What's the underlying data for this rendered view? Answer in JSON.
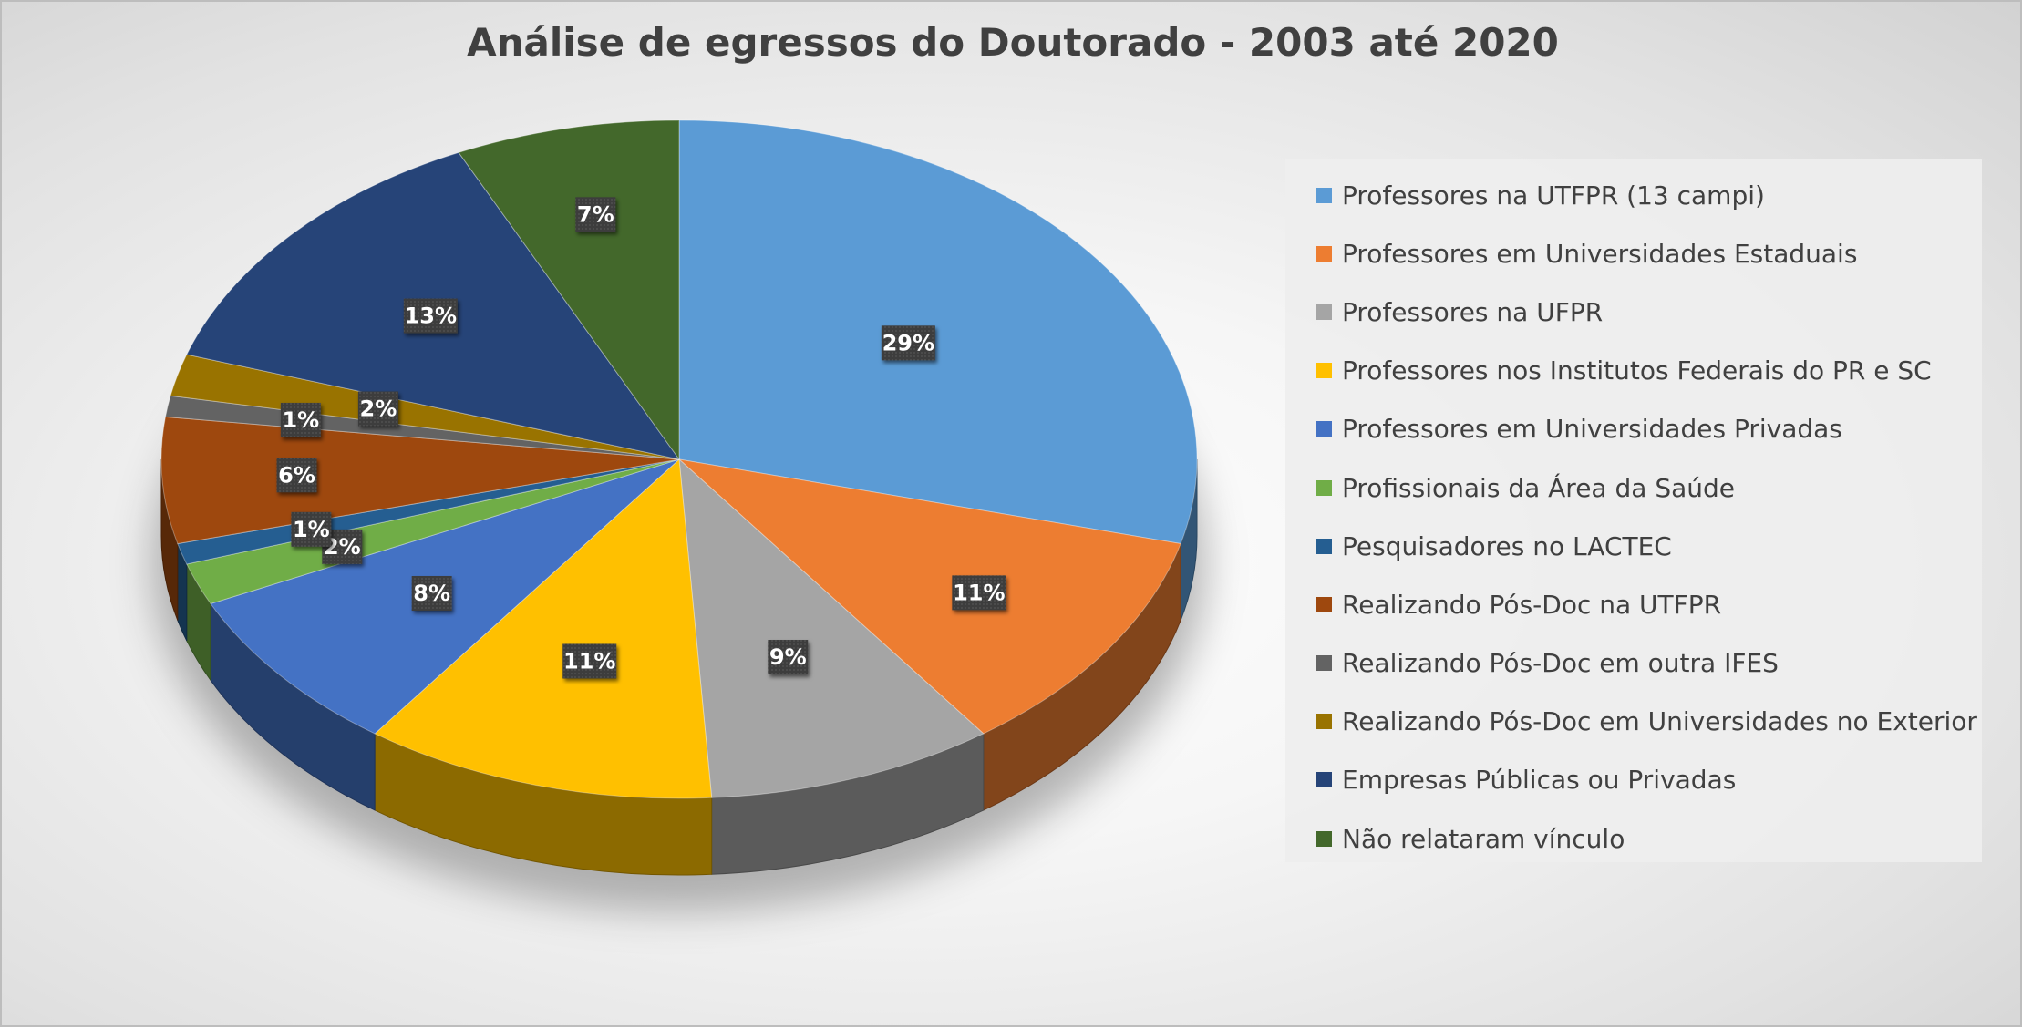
{
  "chart_data": {
    "type": "pie",
    "style": "3d-pie",
    "title": "Análise de egressos do Doutorado - 2003 até 2020",
    "legend_position": "right",
    "start_angle": "12 o'clock",
    "direction": "clockwise",
    "slices": [
      {
        "label": "Professores na UTFPR (13 campi)",
        "value": 29,
        "display": "29%",
        "color": "#5B9BD5"
      },
      {
        "label": "Professores em Universidades Estaduais",
        "value": 11,
        "display": "11%",
        "color": "#ED7D31"
      },
      {
        "label": "Professores na UFPR",
        "value": 9,
        "display": "9%",
        "color": "#A5A5A5"
      },
      {
        "label": "Professores nos Institutos Federais do PR e SC",
        "value": 11,
        "display": "11%",
        "color": "#FFC000"
      },
      {
        "label": "Professores em Universidades Privadas",
        "value": 8,
        "display": "8%",
        "color": "#4472C4"
      },
      {
        "label": "Profissionais da Área da Saúde",
        "value": 2,
        "display": "2%",
        "color": "#70AD47"
      },
      {
        "label": "Pesquisadores no LACTEC",
        "value": 1,
        "display": "1%",
        "color": "#255E91"
      },
      {
        "label": "Realizando Pós-Doc na UTFPR",
        "value": 6,
        "display": "6%",
        "color": "#9E480E"
      },
      {
        "label": "Realizando Pós-Doc em outra IFES",
        "value": 1,
        "display": "1%",
        "color": "#636363"
      },
      {
        "label": "Realizando Pós-Doc em Universidades no Exterior",
        "value": 2,
        "display": "2%",
        "color": "#997300"
      },
      {
        "label": "Empresas Públicas ou Privadas",
        "value": 13,
        "display": "13%",
        "color": "#264478"
      },
      {
        "label": "Não relataram vínculo",
        "value": 7,
        "display": "7%",
        "color": "#43682B"
      }
    ]
  }
}
